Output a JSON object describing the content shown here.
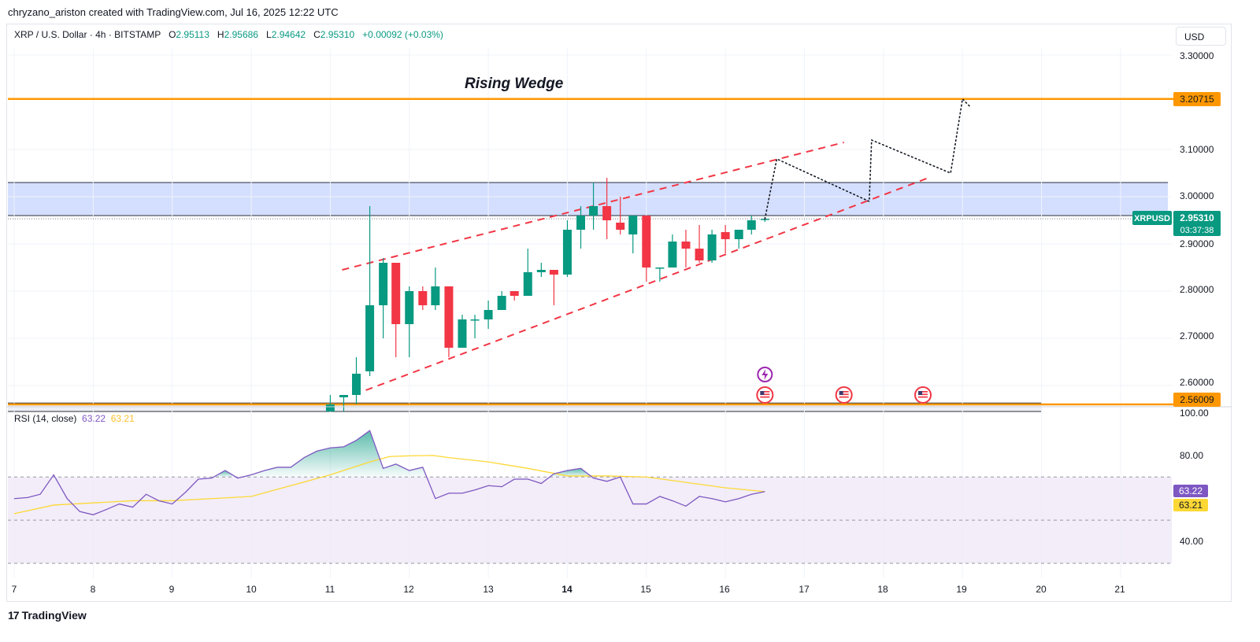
{
  "header": {
    "attribution": "chryzano_ariston created with TradingView.com, Jul 16, 2025 12:22 UTC",
    "symbol": "XRP / U.S. Dollar · 4h · BITSTAMP",
    "ohlc": [
      {
        "label": "O",
        "value": "2.95113"
      },
      {
        "label": "H",
        "value": "2.95686"
      },
      {
        "label": "L",
        "value": "2.94642"
      },
      {
        "label": "C",
        "value": "2.95310"
      }
    ],
    "change": "+0.00092 (+0.03%)",
    "currency": "USD"
  },
  "annotation": "Rising Wedge",
  "price_scale": [
    "3.30000",
    "3.10000",
    "3.00000",
    "2.90000",
    "2.80000",
    "2.70000",
    "2.60000"
  ],
  "tags": {
    "resistance": "3.20715",
    "support": "2.56009",
    "symbol": "XRPUSD",
    "last_price": "2.95310",
    "countdown": "03:37:38"
  },
  "rsi": {
    "label": "RSI (14, close)",
    "value": "63.22",
    "ma_value": "63.21",
    "scale": [
      "100.00",
      "80.00",
      "40.00"
    ]
  },
  "time_axis": [
    "7",
    "8",
    "9",
    "10",
    "11",
    "12",
    "13",
    "14",
    "15",
    "16",
    "17",
    "18",
    "19",
    "20",
    "21"
  ],
  "brand": "TradingView",
  "colors": {
    "up": "#089981",
    "down": "#f23645",
    "level": "#ff9800",
    "zone": "#cfdcff",
    "wedge": "#f23645",
    "rsi": "#7e57c2",
    "rsi_ma": "#fdd835"
  },
  "chart_data": [
    {
      "type": "candlestick",
      "x_unit": "day of July 2025",
      "y_unit": "USD",
      "ylim": [
        2.545,
        3.33
      ],
      "xlim": [
        7,
        21.6
      ],
      "candles": [
        {
          "t": 11.0,
          "o": 2.545,
          "h": 2.58,
          "l": 2.545,
          "c": 2.56
        },
        {
          "t": 11.17,
          "o": 2.575,
          "h": 2.58,
          "l": 2.545,
          "c": 2.58
        },
        {
          "t": 11.33,
          "o": 2.58,
          "h": 2.66,
          "l": 2.56,
          "c": 2.625
        },
        {
          "t": 11.5,
          "o": 2.63,
          "h": 2.98,
          "l": 2.62,
          "c": 2.77
        },
        {
          "t": 11.67,
          "o": 2.77,
          "h": 2.87,
          "l": 2.7,
          "c": 2.86
        },
        {
          "t": 11.83,
          "o": 2.86,
          "h": 2.86,
          "l": 2.66,
          "c": 2.73
        },
        {
          "t": 12.0,
          "o": 2.73,
          "h": 2.81,
          "l": 2.66,
          "c": 2.8
        },
        {
          "t": 12.17,
          "o": 2.8,
          "h": 2.81,
          "l": 2.76,
          "c": 2.77
        },
        {
          "t": 12.33,
          "o": 2.77,
          "h": 2.85,
          "l": 2.76,
          "c": 2.81
        },
        {
          "t": 12.5,
          "o": 2.81,
          "h": 2.81,
          "l": 2.66,
          "c": 2.68
        },
        {
          "t": 12.67,
          "o": 2.68,
          "h": 2.75,
          "l": 2.68,
          "c": 2.74
        },
        {
          "t": 12.83,
          "o": 2.74,
          "h": 2.75,
          "l": 2.7,
          "c": 2.74
        },
        {
          "t": 13.0,
          "o": 2.74,
          "h": 2.78,
          "l": 2.72,
          "c": 2.76
        },
        {
          "t": 13.17,
          "o": 2.76,
          "h": 2.8,
          "l": 2.76,
          "c": 2.79
        },
        {
          "t": 13.33,
          "o": 2.8,
          "h": 2.8,
          "l": 2.78,
          "c": 2.79
        },
        {
          "t": 13.5,
          "o": 2.79,
          "h": 2.89,
          "l": 2.79,
          "c": 2.84
        },
        {
          "t": 13.67,
          "o": 2.84,
          "h": 2.86,
          "l": 2.83,
          "c": 2.845
        },
        {
          "t": 13.83,
          "o": 2.845,
          "h": 2.845,
          "l": 2.77,
          "c": 2.835
        },
        {
          "t": 14.0,
          "o": 2.835,
          "h": 2.95,
          "l": 2.83,
          "c": 2.93
        },
        {
          "t": 14.17,
          "o": 2.93,
          "h": 2.98,
          "l": 2.89,
          "c": 2.96
        },
        {
          "t": 14.33,
          "o": 2.96,
          "h": 3.03,
          "l": 2.93,
          "c": 2.98
        },
        {
          "t": 14.5,
          "o": 2.98,
          "h": 3.04,
          "l": 2.91,
          "c": 2.95
        },
        {
          "t": 14.67,
          "o": 2.945,
          "h": 3.0,
          "l": 2.92,
          "c": 2.93
        },
        {
          "t": 14.83,
          "o": 2.92,
          "h": 2.96,
          "l": 2.88,
          "c": 2.96
        },
        {
          "t": 15.0,
          "o": 2.96,
          "h": 2.96,
          "l": 2.82,
          "c": 2.85
        },
        {
          "t": 15.17,
          "o": 2.85,
          "h": 2.85,
          "l": 2.82,
          "c": 2.85
        },
        {
          "t": 15.33,
          "o": 2.85,
          "h": 2.92,
          "l": 2.85,
          "c": 2.905
        },
        {
          "t": 15.5,
          "o": 2.905,
          "h": 2.93,
          "l": 2.85,
          "c": 2.89
        },
        {
          "t": 15.67,
          "o": 2.89,
          "h": 2.94,
          "l": 2.86,
          "c": 2.865
        },
        {
          "t": 15.83,
          "o": 2.865,
          "h": 2.93,
          "l": 2.86,
          "c": 2.92
        },
        {
          "t": 16.0,
          "o": 2.925,
          "h": 2.94,
          "l": 2.88,
          "c": 2.91
        },
        {
          "t": 16.17,
          "o": 2.91,
          "h": 2.93,
          "l": 2.89,
          "c": 2.93
        },
        {
          "t": 16.33,
          "o": 2.93,
          "h": 2.96,
          "l": 2.92,
          "c": 2.95
        },
        {
          "t": 16.5,
          "o": 2.95113,
          "h": 2.95686,
          "l": 2.94642,
          "c": 2.9531
        }
      ],
      "levels": [
        {
          "label": "3.20715",
          "price": 3.20715
        },
        {
          "label": "2.56009",
          "price": 2.56009
        }
      ],
      "zones": [
        {
          "from": 2.96,
          "to": 3.03,
          "t_end": 21.6
        },
        {
          "from": 2.545,
          "to": 2.563,
          "t_end": 20.0
        }
      ],
      "wedge_lines": [
        {
          "points": [
            [
              11.15,
              2.845
            ],
            [
              17.5,
              3.115
            ]
          ]
        },
        {
          "points": [
            [
              11.45,
              2.59
            ],
            [
              18.57,
              3.04
            ]
          ]
        }
      ],
      "projection_path": [
        [
          16.5,
          2.953
        ],
        [
          16.65,
          3.08
        ],
        [
          17.82,
          2.99
        ],
        [
          17.85,
          3.12
        ],
        [
          18.85,
          3.05
        ],
        [
          19.0,
          3.207
        ],
        [
          19.1,
          3.19
        ]
      ],
      "event_markers": [
        16.5,
        17.5,
        18.5
      ]
    },
    {
      "type": "line",
      "name": "RSI (14, close)",
      "ylim": [
        25,
        102
      ],
      "bands": [
        70,
        50,
        30
      ],
      "series": [
        {
          "name": "RSI",
          "x": [
            7.0,
            7.17,
            7.33,
            7.5,
            7.67,
            7.83,
            8.0,
            8.17,
            8.33,
            8.5,
            8.67,
            8.83,
            9.0,
            9.17,
            9.33,
            9.5,
            9.67,
            9.83,
            10.0,
            10.17,
            10.33,
            10.5,
            10.67,
            10.83,
            11.0,
            11.17,
            11.33,
            11.5,
            11.67,
            11.83,
            12.0,
            12.17,
            12.33,
            12.5,
            12.67,
            12.83,
            13.0,
            13.17,
            13.33,
            13.5,
            13.67,
            13.83,
            14.0,
            14.17,
            14.33,
            14.5,
            14.67,
            14.83,
            15.0,
            15.17,
            15.33,
            15.5,
            15.67,
            15.83,
            16.0,
            16.17,
            16.33,
            16.5
          ],
          "values": [
            60,
            60.5,
            62,
            71,
            60,
            54,
            52.5,
            55,
            57.5,
            56,
            62,
            59,
            57.5,
            63,
            69,
            69.5,
            73,
            69.5,
            71,
            73,
            74.5,
            74.5,
            79,
            82,
            83.5,
            84,
            87,
            91.5,
            74,
            76,
            73,
            74.5,
            60,
            62.5,
            62.5,
            64,
            66,
            65.5,
            69,
            69,
            67,
            71.5,
            73,
            74,
            69.5,
            68,
            70,
            57.5,
            57.5,
            61,
            59,
            56.5,
            61,
            60,
            58.5,
            60,
            62,
            63.22
          ]
        },
        {
          "name": "RSI-based MA",
          "x": [
            7.0,
            7.5,
            8.0,
            8.5,
            9.0,
            9.5,
            10.0,
            10.5,
            11.0,
            11.5,
            11.75,
            12.0,
            12.3,
            12.5,
            13.0,
            13.5,
            14.0,
            14.5,
            15.0,
            15.5,
            16.0,
            16.5
          ],
          "values": [
            53,
            57,
            58,
            59,
            59,
            60,
            61,
            66,
            71,
            77,
            79.5,
            79.8,
            80,
            79,
            77,
            74,
            70.5,
            70.5,
            70,
            67.5,
            65,
            63.21
          ]
        }
      ]
    }
  ]
}
